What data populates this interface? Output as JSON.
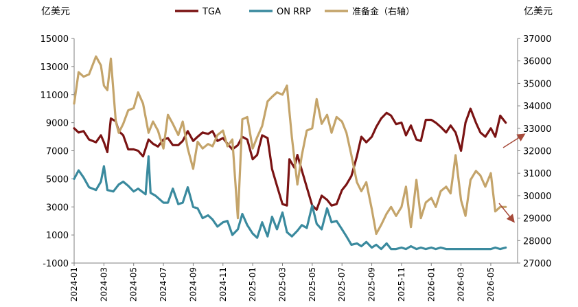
{
  "chart_data": {
    "type": "line",
    "left_unit": "亿美元",
    "right_unit": "亿美元",
    "y_left": {
      "min": -1000,
      "max": 15000,
      "ticks": [
        -1000,
        1000,
        3000,
        5000,
        7000,
        9000,
        11000,
        13000,
        15000
      ]
    },
    "y_right": {
      "min": 27000,
      "max": 37000,
      "ticks": [
        27000,
        28000,
        29000,
        30000,
        31000,
        32000,
        33000,
        34000,
        35000,
        36000,
        37000
      ]
    },
    "x_range": [
      "2024-01",
      "2026-06"
    ],
    "x_ticks": [
      "2024-01",
      "2024-03",
      "2024-05",
      "2024-07",
      "2024-09",
      "2024-11",
      "2025-01",
      "2025-03",
      "2025-05",
      "2025-07",
      "2025-09",
      "2025-11",
      "2026-01",
      "2026-03",
      "2026-05"
    ],
    "grid": false,
    "legend_position": "top",
    "series": [
      {
        "name": "TGA",
        "axis": "left",
        "color": "#7a1313",
        "points": [
          [
            "2024-01",
            8600
          ],
          [
            "2024-01-10",
            8300
          ],
          [
            "2024-01-20",
            8400
          ],
          [
            "2024-02",
            7800
          ],
          [
            "2024-02-15",
            7600
          ],
          [
            "2024-02-25",
            8100
          ],
          [
            "2024-03",
            7600
          ],
          [
            "2024-03-08",
            6900
          ],
          [
            "2024-03-15",
            9300
          ],
          [
            "2024-03-25",
            9100
          ],
          [
            "2024-04",
            8400
          ],
          [
            "2024-04-10",
            8100
          ],
          [
            "2024-04-20",
            7100
          ],
          [
            "2024-05",
            7100
          ],
          [
            "2024-05-10",
            7000
          ],
          [
            "2024-05-20",
            6600
          ],
          [
            "2024-06",
            7800
          ],
          [
            "2024-06-10",
            7500
          ],
          [
            "2024-06-20",
            7300
          ],
          [
            "2024-07",
            7800
          ],
          [
            "2024-07-10",
            7900
          ],
          [
            "2024-07-20",
            7400
          ],
          [
            "2024-08",
            7400
          ],
          [
            "2024-08-10",
            7700
          ],
          [
            "2024-08-20",
            8400
          ],
          [
            "2024-09",
            7700
          ],
          [
            "2024-09-10",
            8000
          ],
          [
            "2024-09-20",
            8300
          ],
          [
            "2024-10",
            8200
          ],
          [
            "2024-10-10",
            8400
          ],
          [
            "2024-10-20",
            7700
          ],
          [
            "2024-11",
            7900
          ],
          [
            "2024-11-10",
            7500
          ],
          [
            "2024-11-20",
            7100
          ],
          [
            "2024-12",
            7400
          ],
          [
            "2024-12-10",
            8000
          ],
          [
            "2024-12-20",
            7800
          ],
          [
            "2025-01",
            6400
          ],
          [
            "2025-01-10",
            6700
          ],
          [
            "2025-01-20",
            8100
          ],
          [
            "2025-02",
            7900
          ],
          [
            "2025-02-10",
            5700
          ],
          [
            "2025-02-20",
            4500
          ],
          [
            "2025-03",
            3200
          ],
          [
            "2025-03-10",
            3100
          ],
          [
            "2025-03-15",
            6400
          ],
          [
            "2025-03-25",
            5800
          ],
          [
            "2025-04",
            6700
          ],
          [
            "2025-04-10",
            5600
          ],
          [
            "2025-04-20",
            4400
          ],
          [
            "2025-05",
            3100
          ],
          [
            "2025-05-10",
            2800
          ],
          [
            "2025-05-20",
            3800
          ],
          [
            "2025-06",
            3500
          ],
          [
            "2025-06-10",
            3100
          ],
          [
            "2025-06-20",
            3200
          ],
          [
            "2025-07",
            4200
          ],
          [
            "2025-07-10",
            4600
          ],
          [
            "2025-07-20",
            5200
          ],
          [
            "2025-08",
            6600
          ],
          [
            "2025-08-10",
            8000
          ],
          [
            "2025-08-20",
            7600
          ],
          [
            "2025-09",
            8000
          ],
          [
            "2025-09-10",
            8700
          ],
          [
            "2025-09-20",
            9300
          ],
          [
            "2025-10",
            9700
          ],
          [
            "2025-10-10",
            9500
          ],
          [
            "2025-10-20",
            8900
          ],
          [
            "2025-11",
            9000
          ],
          [
            "2025-11-10",
            8100
          ],
          [
            "2025-11-20",
            8800
          ],
          [
            "2025-12",
            7800
          ],
          [
            "2025-12-10",
            7700
          ],
          [
            "2025-12-20",
            9200
          ],
          [
            "2026-01",
            9200
          ],
          [
            "2026-01-10",
            9000
          ],
          [
            "2026-01-20",
            8700
          ],
          [
            "2026-02",
            8300
          ],
          [
            "2026-02-10",
            8800
          ],
          [
            "2026-02-20",
            8300
          ],
          [
            "2026-03",
            7000
          ],
          [
            "2026-03-10",
            9000
          ],
          [
            "2026-03-20",
            10000
          ],
          [
            "2026-04",
            9000
          ],
          [
            "2026-04-10",
            8300
          ],
          [
            "2026-04-20",
            8000
          ],
          [
            "2026-05",
            8600
          ],
          [
            "2026-05-10",
            8000
          ],
          [
            "2026-05-20",
            9500
          ],
          [
            "2026-06",
            9000
          ]
        ]
      },
      {
        "name": "ON RRP",
        "axis": "left",
        "color": "#3a8a9e",
        "points": [
          [
            "2024-01",
            5000
          ],
          [
            "2024-01-10",
            5600
          ],
          [
            "2024-01-20",
            5100
          ],
          [
            "2024-02",
            4400
          ],
          [
            "2024-02-15",
            4200
          ],
          [
            "2024-02-25",
            4800
          ],
          [
            "2024-03",
            5900
          ],
          [
            "2024-03-08",
            4200
          ],
          [
            "2024-03-20",
            4100
          ],
          [
            "2024-04",
            4600
          ],
          [
            "2024-04-10",
            4800
          ],
          [
            "2024-04-20",
            4500
          ],
          [
            "2024-05",
            4100
          ],
          [
            "2024-05-10",
            4300
          ],
          [
            "2024-05-25",
            3900
          ],
          [
            "2024-06",
            6600
          ],
          [
            "2024-06-05",
            4000
          ],
          [
            "2024-06-15",
            3800
          ],
          [
            "2024-07",
            3300
          ],
          [
            "2024-07-10",
            3300
          ],
          [
            "2024-07-20",
            4300
          ],
          [
            "2024-08",
            3200
          ],
          [
            "2024-08-10",
            3300
          ],
          [
            "2024-08-20",
            4400
          ],
          [
            "2024-09",
            3000
          ],
          [
            "2024-09-10",
            2900
          ],
          [
            "2024-09-20",
            2200
          ],
          [
            "2024-10",
            2400
          ],
          [
            "2024-10-10",
            2100
          ],
          [
            "2024-10-20",
            1600
          ],
          [
            "2024-11",
            1900
          ],
          [
            "2024-11-10",
            2000
          ],
          [
            "2024-11-20",
            1000
          ],
          [
            "2024-12",
            1400
          ],
          [
            "2024-12-10",
            2500
          ],
          [
            "2024-12-20",
            1700
          ],
          [
            "2025-01",
            1100
          ],
          [
            "2025-01-10",
            800
          ],
          [
            "2025-01-20",
            1900
          ],
          [
            "2025-02",
            900
          ],
          [
            "2025-02-10",
            2300
          ],
          [
            "2025-02-20",
            1400
          ],
          [
            "2025-03",
            2600
          ],
          [
            "2025-03-10",
            1200
          ],
          [
            "2025-03-20",
            900
          ],
          [
            "2025-04",
            1300
          ],
          [
            "2025-04-10",
            1700
          ],
          [
            "2025-04-20",
            1500
          ],
          [
            "2025-05",
            3100
          ],
          [
            "2025-05-10",
            1800
          ],
          [
            "2025-05-20",
            1400
          ],
          [
            "2025-06",
            2900
          ],
          [
            "2025-06-10",
            1900
          ],
          [
            "2025-06-20",
            2000
          ],
          [
            "2025-07",
            1400
          ],
          [
            "2025-07-10",
            900
          ],
          [
            "2025-07-20",
            300
          ],
          [
            "2025-08",
            400
          ],
          [
            "2025-08-10",
            200
          ],
          [
            "2025-08-20",
            500
          ],
          [
            "2025-09",
            100
          ],
          [
            "2025-09-10",
            300
          ],
          [
            "2025-09-20",
            0
          ],
          [
            "2025-10",
            400
          ],
          [
            "2025-10-10",
            0
          ],
          [
            "2025-10-20",
            0
          ],
          [
            "2025-11",
            100
          ],
          [
            "2025-11-10",
            0
          ],
          [
            "2025-11-20",
            200
          ],
          [
            "2025-12",
            0
          ],
          [
            "2025-12-10",
            100
          ],
          [
            "2025-12-20",
            0
          ],
          [
            "2026-01",
            100
          ],
          [
            "2026-01-10",
            0
          ],
          [
            "2026-01-20",
            100
          ],
          [
            "2026-02",
            0
          ],
          [
            "2026-02-10",
            0
          ],
          [
            "2026-02-20",
            0
          ],
          [
            "2026-03",
            0
          ],
          [
            "2026-03-10",
            0
          ],
          [
            "2026-03-20",
            0
          ],
          [
            "2026-04",
            0
          ],
          [
            "2026-04-10",
            0
          ],
          [
            "2026-04-20",
            0
          ],
          [
            "2026-05",
            0
          ],
          [
            "2026-05-10",
            100
          ],
          [
            "2026-05-20",
            0
          ],
          [
            "2026-06",
            100
          ]
        ]
      },
      {
        "name": "准备金（右轴）",
        "axis": "right",
        "color": "#c4a46a",
        "points": [
          [
            "2024-01",
            34100
          ],
          [
            "2024-01-10",
            35500
          ],
          [
            "2024-01-20",
            35300
          ],
          [
            "2024-02",
            35400
          ],
          [
            "2024-02-15",
            36200
          ],
          [
            "2024-02-25",
            35800
          ],
          [
            "2024-03",
            34900
          ],
          [
            "2024-03-08",
            34700
          ],
          [
            "2024-03-15",
            36100
          ],
          [
            "2024-03-25",
            33300
          ],
          [
            "2024-04",
            32800
          ],
          [
            "2024-04-10",
            33200
          ],
          [
            "2024-04-20",
            33800
          ],
          [
            "2024-05",
            33900
          ],
          [
            "2024-05-10",
            34600
          ],
          [
            "2024-05-20",
            34100
          ],
          [
            "2024-06",
            32800
          ],
          [
            "2024-06-10",
            33300
          ],
          [
            "2024-06-20",
            32900
          ],
          [
            "2024-07",
            32100
          ],
          [
            "2024-07-10",
            33600
          ],
          [
            "2024-07-20",
            33200
          ],
          [
            "2024-08",
            32700
          ],
          [
            "2024-08-10",
            33300
          ],
          [
            "2024-08-20",
            32100
          ],
          [
            "2024-09",
            31200
          ],
          [
            "2024-09-10",
            32400
          ],
          [
            "2024-09-20",
            32100
          ],
          [
            "2024-10",
            32300
          ],
          [
            "2024-10-10",
            32200
          ],
          [
            "2024-10-20",
            32700
          ],
          [
            "2024-11",
            32900
          ],
          [
            "2024-11-10",
            32200
          ],
          [
            "2024-11-20",
            32500
          ],
          [
            "2024-12",
            29000
          ],
          [
            "2024-12-10",
            33400
          ],
          [
            "2024-12-20",
            33500
          ],
          [
            "2025-01",
            32100
          ],
          [
            "2025-01-10",
            32600
          ],
          [
            "2025-01-20",
            33100
          ],
          [
            "2025-02",
            34200
          ],
          [
            "2025-02-10",
            34400
          ],
          [
            "2025-02-20",
            34600
          ],
          [
            "2025-03",
            34500
          ],
          [
            "2025-03-10",
            34900
          ],
          [
            "2025-03-20",
            32600
          ],
          [
            "2025-04",
            30500
          ],
          [
            "2025-04-10",
            31800
          ],
          [
            "2025-04-20",
            32900
          ],
          [
            "2025-05",
            33000
          ],
          [
            "2025-05-10",
            34300
          ],
          [
            "2025-05-20",
            33200
          ],
          [
            "2025-06",
            33600
          ],
          [
            "2025-06-10",
            32800
          ],
          [
            "2025-06-20",
            33500
          ],
          [
            "2025-07",
            33300
          ],
          [
            "2025-07-10",
            32800
          ],
          [
            "2025-07-20",
            31800
          ],
          [
            "2025-08",
            30600
          ],
          [
            "2025-08-10",
            30200
          ],
          [
            "2025-08-20",
            30600
          ],
          [
            "2025-09",
            29400
          ],
          [
            "2025-09-10",
            28300
          ],
          [
            "2025-09-20",
            28700
          ],
          [
            "2025-10",
            29200
          ],
          [
            "2025-10-10",
            29500
          ],
          [
            "2025-10-20",
            29100
          ],
          [
            "2025-11",
            29500
          ],
          [
            "2025-11-10",
            30400
          ],
          [
            "2025-11-20",
            28600
          ],
          [
            "2025-12",
            30700
          ],
          [
            "2025-12-10",
            29000
          ],
          [
            "2025-12-20",
            29700
          ],
          [
            "2026-01",
            29900
          ],
          [
            "2026-01-10",
            29500
          ],
          [
            "2026-01-20",
            30200
          ],
          [
            "2026-02",
            30400
          ],
          [
            "2026-02-10",
            30100
          ],
          [
            "2026-02-20",
            31800
          ],
          [
            "2026-03",
            29800
          ],
          [
            "2026-03-10",
            29100
          ],
          [
            "2026-03-20",
            30700
          ],
          [
            "2026-04",
            31100
          ],
          [
            "2026-04-10",
            30900
          ],
          [
            "2026-04-20",
            30400
          ],
          [
            "2026-05",
            31000
          ],
          [
            "2026-05-10",
            29300
          ],
          [
            "2026-05-20",
            29500
          ],
          [
            "2026-06",
            29500
          ]
        ]
      }
    ],
    "annotations": [
      {
        "kind": "arrow",
        "color": "#a64a3a",
        "note": "trend arrow up near TGA end"
      },
      {
        "kind": "arrow",
        "color": "#a64a3a",
        "note": "trend arrow down near reserves end"
      }
    ]
  }
}
